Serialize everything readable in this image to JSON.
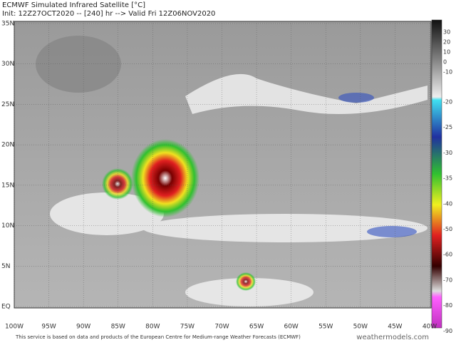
{
  "header": {
    "title": "ECMWF Simulated Infrared Satellite [°C]",
    "subtitle": "Init: 12Z27OCT2020 -- [240] hr --> Valid Fri 12Z06NOV2020"
  },
  "map": {
    "lat_labels": [
      "35N",
      "30N",
      "25N",
      "20N",
      "15N",
      "10N",
      "5N",
      "EQ"
    ],
    "lon_labels": [
      "100W",
      "95W",
      "90W",
      "85W",
      "80W",
      "75W",
      "70W",
      "65W",
      "60W",
      "55W",
      "50W",
      "45W",
      "40W"
    ]
  },
  "colorbar": {
    "labels": [
      "30",
      "20",
      "10",
      "0",
      "-10",
      "-20",
      "-25",
      "-30",
      "-35",
      "-40",
      "-50",
      "-60",
      "-70",
      "-80",
      "-90"
    ]
  },
  "footer": {
    "credit": "This service is based on data and products of the European Centre for Medium-range Weather Forecasts (ECMWF)",
    "watermark": "weathermodels.com"
  }
}
